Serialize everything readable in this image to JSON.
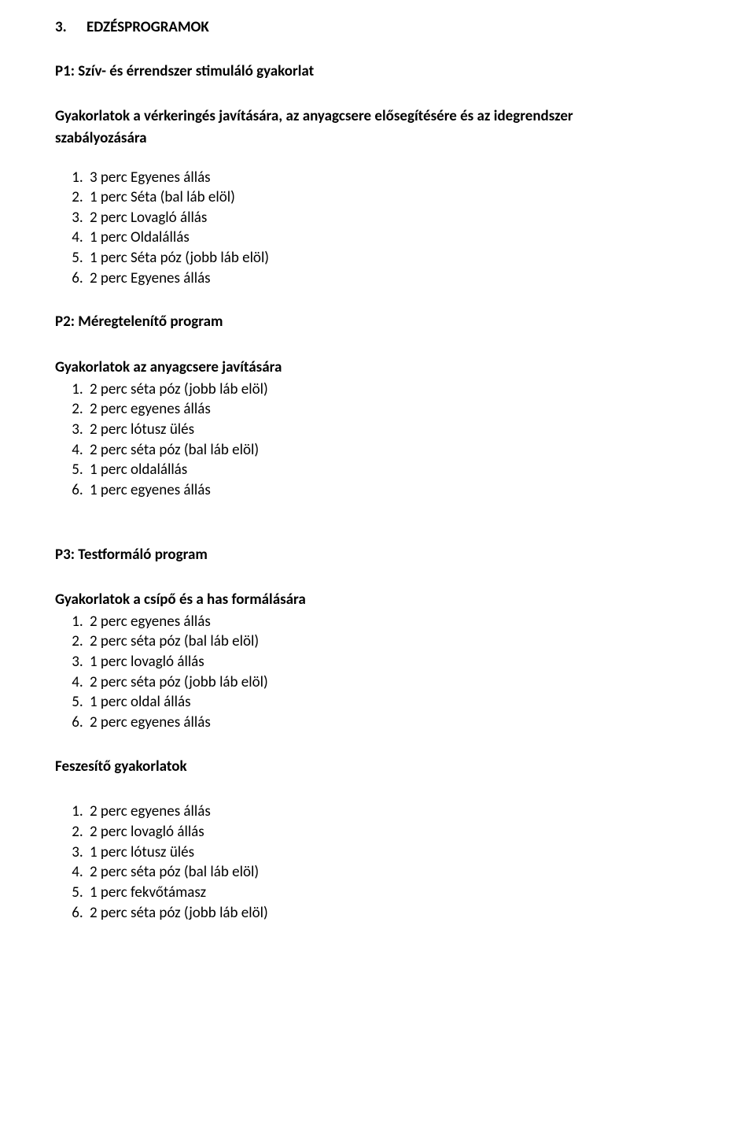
{
  "doc": {
    "top_number": "3.",
    "top_title": "EDZÉSPROGRAMOK",
    "p1_title": "P1: Szív- és érrendszer stimuláló gyakorlat",
    "p1_subtitle_line1": "Gyakorlatok a vérkeringés javítására, az anyagcsere elősegítésére és az idegrendszer",
    "p1_subtitle_line2": "szabályozására",
    "p1_items": {
      "0": "3 perc Egyenes állás",
      "1": "1 perc Séta (bal láb elöl)",
      "2": "2 perc Lovagló állás",
      "3": "1 perc Oldalállás",
      "4": "1 perc Séta póz (jobb láb elöl)",
      "5": "2 perc Egyenes állás"
    },
    "p2_title": "P2: Méregtelenítő program",
    "p2_subtitle": "Gyakorlatok az anyagcsere javítására",
    "p2_items": {
      "0": "2 perc séta póz (jobb láb elöl)",
      "1": "2 perc egyenes állás",
      "2": "2 perc lótusz ülés",
      "3": "2 perc séta póz (bal láb elöl)",
      "4": "1 perc oldalállás",
      "5": "1 perc egyenes állás"
    },
    "p3_title": "P3: Testformáló program",
    "p3_subtitle": "Gyakorlatok a csípő és a has formálására",
    "p3_items": {
      "0": "2 perc egyenes állás",
      "1": "2 perc séta póz (bal láb elöl)",
      "2": "1 perc lovagló állás",
      "3": " 2 perc séta póz (jobb láb elöl)",
      "4": "1 perc oldal állás",
      "5": "2 perc egyenes állás"
    },
    "p3b_subtitle": "Feszesítő gyakorlatok",
    "p3b_items": {
      "0": "2 perc egyenes állás",
      "1": "2 perc lovagló állás",
      "2": "1 perc lótusz ülés",
      "3": "2 perc séta póz (bal láb elöl)",
      "4": "1 perc fekvőtámasz",
      "5": "2 perc séta póz (jobb láb elöl)"
    }
  }
}
